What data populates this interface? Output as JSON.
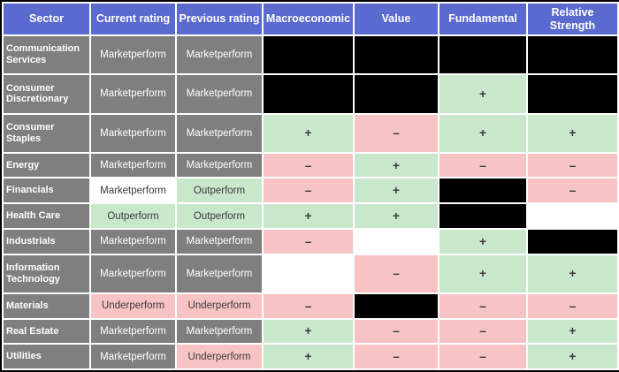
{
  "colors": {
    "page_bg": "#000000",
    "header_bg": "#5a6acf",
    "header_text": "#ffffff",
    "gray_bg": "#7f7f7f",
    "gray_text": "#ffffff",
    "green_bg": "#c9e7cb",
    "pink_bg": "#f8c3c4",
    "white_bg": "#ffffff",
    "black_bg": "#000000",
    "dark_text": "#3a3a3a",
    "grid": "#ffffff"
  },
  "chart_data": {
    "type": "table",
    "title": "Sector ratings and factor signals",
    "columns": [
      "Sector",
      "Current rating",
      "Previous rating",
      "Macroeconomic",
      "Value",
      "Fundamental",
      "Relative Strength"
    ],
    "legend": {
      "positive": "+",
      "negative": "–",
      "redacted": ""
    },
    "rows": [
      {
        "sector": "Communication Services",
        "cells": [
          {
            "text": "Marketperform",
            "style": "gray"
          },
          {
            "text": "Marketperform",
            "style": "gray"
          },
          {
            "text": "",
            "style": "black"
          },
          {
            "text": "",
            "style": "black"
          },
          {
            "text": "",
            "style": "black"
          },
          {
            "text": "",
            "style": "black"
          }
        ]
      },
      {
        "sector": "Consumer Discretionary",
        "cells": [
          {
            "text": "Marketperform",
            "style": "gray"
          },
          {
            "text": "Marketperform",
            "style": "gray"
          },
          {
            "text": "",
            "style": "black"
          },
          {
            "text": "",
            "style": "black"
          },
          {
            "text": "+",
            "style": "green"
          },
          {
            "text": "",
            "style": "black"
          }
        ]
      },
      {
        "sector": "Consumer Staples",
        "cells": [
          {
            "text": "Marketperform",
            "style": "gray"
          },
          {
            "text": "Marketperform",
            "style": "gray"
          },
          {
            "text": "+",
            "style": "green"
          },
          {
            "text": "–",
            "style": "pink"
          },
          {
            "text": "+",
            "style": "green"
          },
          {
            "text": "+",
            "style": "green"
          }
        ]
      },
      {
        "sector": "Energy",
        "cells": [
          {
            "text": "Marketperform",
            "style": "gray"
          },
          {
            "text": "Marketperform",
            "style": "gray"
          },
          {
            "text": "–",
            "style": "pink"
          },
          {
            "text": "+",
            "style": "green"
          },
          {
            "text": "–",
            "style": "pink"
          },
          {
            "text": "–",
            "style": "pink"
          }
        ]
      },
      {
        "sector": "Financials",
        "cells": [
          {
            "text": "Marketperform",
            "style": "white"
          },
          {
            "text": "Outperform",
            "style": "green"
          },
          {
            "text": "–",
            "style": "pink"
          },
          {
            "text": "+",
            "style": "green"
          },
          {
            "text": "",
            "style": "black"
          },
          {
            "text": "–",
            "style": "pink"
          }
        ]
      },
      {
        "sector": "Health Care",
        "cells": [
          {
            "text": "Outperform",
            "style": "green"
          },
          {
            "text": "Outperform",
            "style": "green"
          },
          {
            "text": "+",
            "style": "green"
          },
          {
            "text": "+",
            "style": "green"
          },
          {
            "text": "",
            "style": "black"
          },
          {
            "text": "",
            "style": "white"
          }
        ]
      },
      {
        "sector": "Industrials",
        "cells": [
          {
            "text": "Marketperform",
            "style": "gray"
          },
          {
            "text": "Marketperform",
            "style": "gray"
          },
          {
            "text": "–",
            "style": "pink"
          },
          {
            "text": "",
            "style": "white"
          },
          {
            "text": "+",
            "style": "green"
          },
          {
            "text": "",
            "style": "black"
          }
        ]
      },
      {
        "sector": "Information Technology",
        "cells": [
          {
            "text": "Marketperform",
            "style": "gray"
          },
          {
            "text": "Marketperform",
            "style": "gray"
          },
          {
            "text": "",
            "style": "white"
          },
          {
            "text": "–",
            "style": "pink"
          },
          {
            "text": "+",
            "style": "green"
          },
          {
            "text": "+",
            "style": "green"
          }
        ]
      },
      {
        "sector": "Materials",
        "cells": [
          {
            "text": "Underperform",
            "style": "pink"
          },
          {
            "text": "Underperform",
            "style": "pink"
          },
          {
            "text": "–",
            "style": "pink"
          },
          {
            "text": "",
            "style": "black"
          },
          {
            "text": "–",
            "style": "pink"
          },
          {
            "text": "–",
            "style": "pink"
          }
        ]
      },
      {
        "sector": "Real Estate",
        "cells": [
          {
            "text": "Marketperform",
            "style": "gray"
          },
          {
            "text": "Marketperform",
            "style": "gray"
          },
          {
            "text": "+",
            "style": "green"
          },
          {
            "text": "–",
            "style": "pink"
          },
          {
            "text": "–",
            "style": "pink"
          },
          {
            "text": "+",
            "style": "green"
          }
        ]
      },
      {
        "sector": "Utilities",
        "cells": [
          {
            "text": "Marketperform",
            "style": "gray"
          },
          {
            "text": "Underperform",
            "style": "pink"
          },
          {
            "text": "+",
            "style": "green"
          },
          {
            "text": "–",
            "style": "pink"
          },
          {
            "text": "–",
            "style": "pink"
          },
          {
            "text": "+",
            "style": "green"
          }
        ]
      }
    ]
  }
}
